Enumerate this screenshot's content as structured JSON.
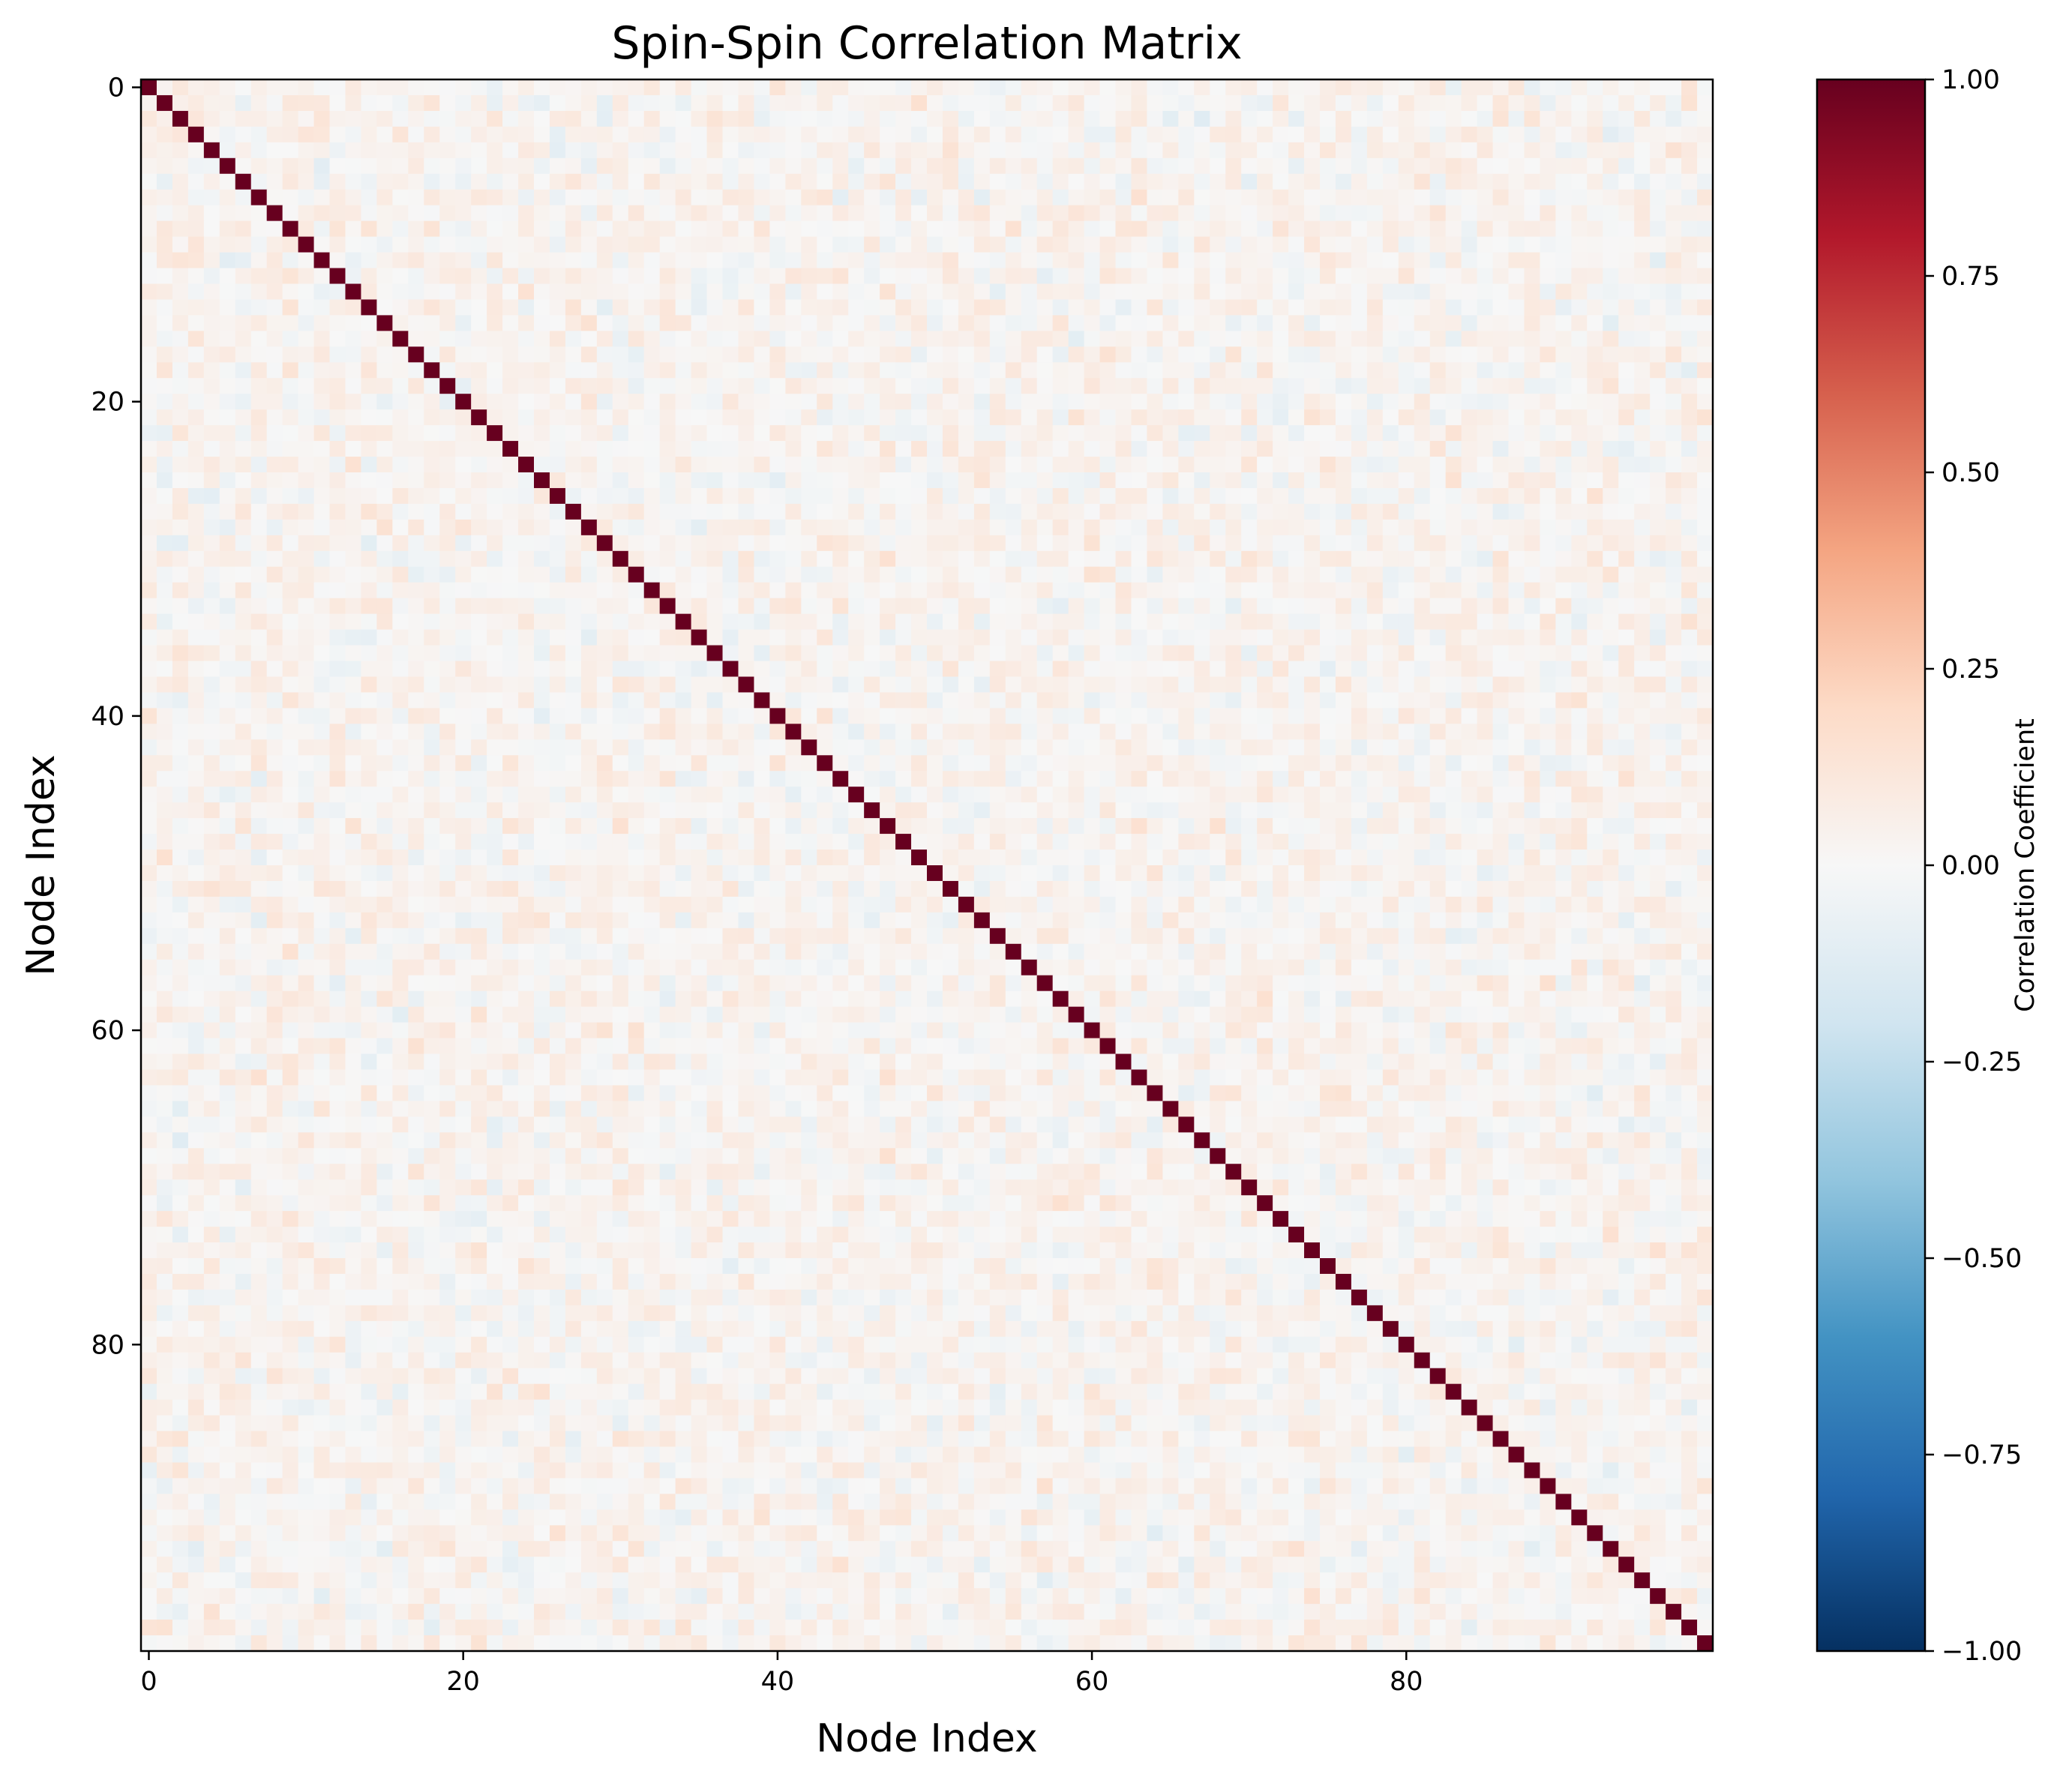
{
  "chart_data": {
    "type": "heatmap",
    "title": "Spin-Spin Correlation Matrix",
    "xlabel": "Node Index",
    "ylabel": "Node Index",
    "n": 100,
    "x_ticks": [
      0,
      20,
      40,
      60,
      80
    ],
    "x_tick_labels": [
      "0",
      "20",
      "40",
      "60",
      "80"
    ],
    "y_ticks": [
      0,
      20,
      40,
      60,
      80
    ],
    "y_tick_labels": [
      "0",
      "20",
      "40",
      "60",
      "80"
    ],
    "diagonal_value": 1.0,
    "off_diagonal_range": [
      -0.25,
      0.3
    ],
    "colormap": "RdBu_r",
    "vmin": -1.0,
    "vmax": 1.0,
    "colorbar": {
      "label": "Correlation Coefficient",
      "ticks": [
        1.0,
        0.75,
        0.5,
        0.25,
        0.0,
        -0.25,
        -0.5,
        -0.75,
        -1.0
      ],
      "tick_labels": [
        "1.00",
        "0.75",
        "0.50",
        "0.25",
        "0.00",
        "−0.25",
        "−0.50",
        "−0.75",
        "−1.00"
      ],
      "colors": [
        "#053061",
        "#2166ac",
        "#4393c3",
        "#92c5de",
        "#d1e5f0",
        "#f7f7f7",
        "#fddbc7",
        "#f4a582",
        "#d6604d",
        "#b2182b",
        "#67001f"
      ]
    }
  }
}
